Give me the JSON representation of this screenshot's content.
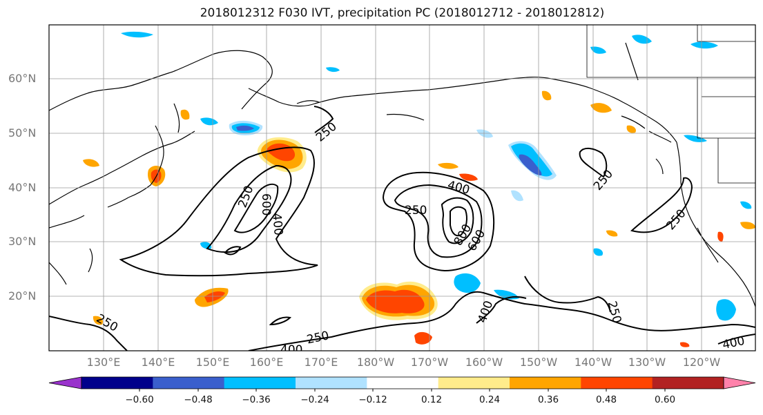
{
  "title": "2018012312 F030 IVT, precipitation PC (2018012712 - 2018012812)",
  "map": {
    "lat_labels": [
      "20°N",
      "30°N",
      "40°N",
      "50°N",
      "60°N"
    ],
    "lon_labels": [
      "130°E",
      "140°E",
      "150°E",
      "160°E",
      "170°E",
      "180°W",
      "170°W",
      "160°W",
      "150°W",
      "140°W",
      "130°W",
      "120°W"
    ],
    "contour_labels": [
      "250",
      "250",
      "400",
      "600",
      "250",
      "400",
      "800",
      "600",
      "250",
      "250",
      "400",
      "250",
      "400",
      "250",
      "400",
      "250"
    ],
    "contour_color": "#000000",
    "coastline_color": "#000000",
    "grid_color": "#9a9a9a"
  },
  "colorbar": {
    "tick_labels": [
      "−0.60",
      "−0.48",
      "−0.36",
      "−0.24",
      "−0.12",
      "0.12",
      "0.24",
      "0.36",
      "0.48",
      "0.60"
    ],
    "colors": [
      "#9932cc",
      "#00008b",
      "#3a5fcd",
      "#00bfff",
      "#b0e2ff",
      "#ffffff",
      "#ffec8b",
      "#ffa500",
      "#ff4500",
      "#b22222",
      "#ff82ab"
    ]
  }
}
